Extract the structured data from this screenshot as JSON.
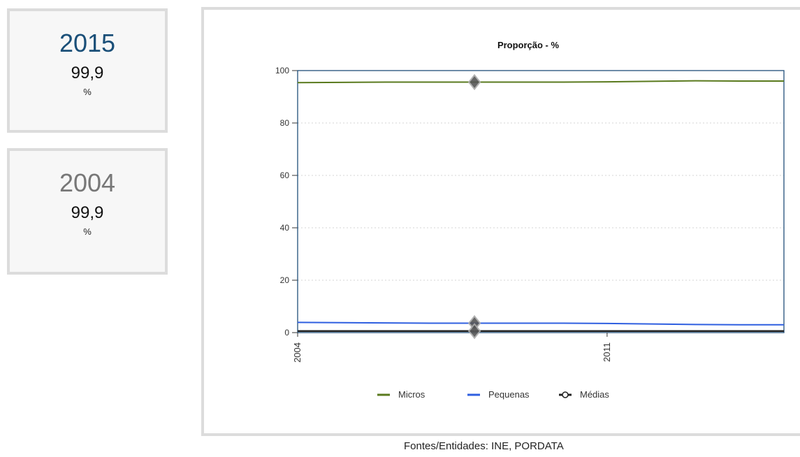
{
  "cards": [
    {
      "year": "2015",
      "value": "99,9",
      "unit": "%"
    },
    {
      "year": "2004",
      "value": "99,9",
      "unit": "%"
    }
  ],
  "sources": "Fontes/Entidades: INE, PORDATA",
  "chart_data": {
    "type": "line",
    "title": "Proporção - %",
    "xlabel": "",
    "ylabel": "",
    "x": [
      2004,
      2005,
      2006,
      2007,
      2008,
      2009,
      2010,
      2011,
      2012,
      2013,
      2014,
      2015
    ],
    "x_tick_labels": [
      "2004",
      "2011"
    ],
    "y_ticks": [
      0,
      20,
      40,
      60,
      80,
      100
    ],
    "ylim": [
      0,
      100
    ],
    "grid": true,
    "legend_placement": "bottom",
    "series": [
      {
        "name": "Micros",
        "color": "#5a7a1e",
        "marker": "none",
        "values": [
          95.4,
          95.5,
          95.6,
          95.6,
          95.6,
          95.6,
          95.6,
          95.7,
          95.9,
          96.1,
          96.0,
          96.0
        ]
      },
      {
        "name": "Pequenas",
        "color": "#2f5fe0",
        "marker": "none",
        "values": [
          3.9,
          3.8,
          3.7,
          3.6,
          3.6,
          3.6,
          3.6,
          3.5,
          3.3,
          3.1,
          3.0,
          3.0
        ]
      },
      {
        "name": "Médias",
        "color": "#222222",
        "marker": "circle",
        "values": [
          0.6,
          0.6,
          0.6,
          0.6,
          0.6,
          0.6,
          0.6,
          0.6,
          0.6,
          0.6,
          0.6,
          0.6
        ]
      }
    ],
    "highlight_index": 4
  }
}
